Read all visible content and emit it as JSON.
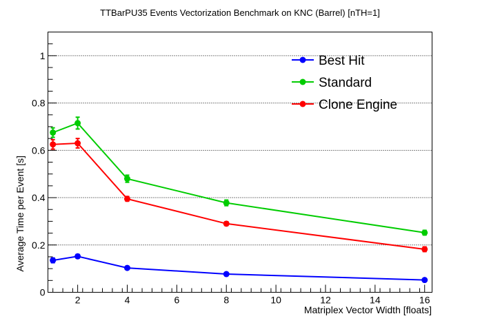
{
  "chart_data": {
    "type": "line",
    "title": "TTBarPU35 Events Vectorization Benchmark on KNC (Barrel) [nTH=1]",
    "xlabel": "Matriplex Vector Width [floats]",
    "ylabel": "Average Time per Event [s]",
    "xlim": [
      0.8,
      16.3
    ],
    "ylim": [
      0,
      1.1
    ],
    "x_ticks": [
      2,
      4,
      6,
      8,
      10,
      12,
      14,
      16
    ],
    "y_ticks": [
      0,
      0.2,
      0.4,
      0.6,
      0.8,
      1
    ],
    "grid": "horizontal dotted",
    "legend_position": "top-right",
    "series": [
      {
        "name": "Best Hit",
        "color": "#0000ff",
        "x": [
          1,
          2,
          4,
          8,
          16
        ],
        "y": [
          0.135,
          0.152,
          0.103,
          0.077,
          0.052
        ],
        "err": [
          0.01,
          0.008,
          0.006,
          0.005,
          0.004
        ]
      },
      {
        "name": "Standard",
        "color": "#00cc00",
        "x": [
          1,
          2,
          4,
          8,
          16
        ],
        "y": [
          0.675,
          0.715,
          0.48,
          0.378,
          0.252
        ],
        "err": [
          0.02,
          0.025,
          0.015,
          0.012,
          0.01
        ]
      },
      {
        "name": "Clone Engine",
        "color": "#ff0000",
        "x": [
          1,
          2,
          4,
          8,
          16
        ],
        "y": [
          0.625,
          0.63,
          0.395,
          0.29,
          0.182
        ],
        "err": [
          0.02,
          0.02,
          0.01,
          0.008,
          0.01
        ]
      }
    ]
  }
}
